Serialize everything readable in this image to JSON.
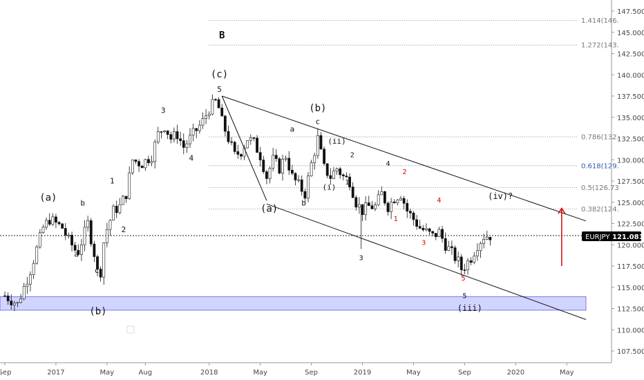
{
  "chart_data": {
    "type": "candlestick",
    "symbol": "EURJPY",
    "last_price": "121.081",
    "colors": {
      "up": "#ffffff",
      "down": "#111111",
      "wick": "#111111",
      "support_zone": "#c9ccff",
      "arrow": "#d40000",
      "fib_blue": "#2a5db0",
      "red_label": "#d40000"
    },
    "ylim": [
      106.25,
      148.75
    ],
    "y_ticks": [
      "147.500",
      "145.000",
      "142.500",
      "140.000",
      "137.500",
      "135.000",
      "132.500",
      "130.000",
      "127.500",
      "125.000",
      "122.500",
      "120.000",
      "117.500",
      "115.000",
      "112.500",
      "110.000",
      "107.500"
    ],
    "x_ticks": [
      {
        "label": "Sep",
        "t": 0
      },
      {
        "label": "2017",
        "t": 4
      },
      {
        "label": "May",
        "t": 8
      },
      {
        "label": "Aug",
        "t": 11
      },
      {
        "label": "2018",
        "t": 16
      },
      {
        "label": "May",
        "t": 20
      },
      {
        "label": "Sep",
        "t": 24
      },
      {
        "label": "2019",
        "t": 28
      },
      {
        "label": "May",
        "t": 32
      },
      {
        "label": "Sep",
        "t": 36
      },
      {
        "label": "2020",
        "t": 40
      },
      {
        "label": "May",
        "t": 44
      }
    ],
    "price_path": [
      [
        0,
        114
      ],
      [
        1,
        113
      ],
      [
        2,
        117
      ],
      [
        3,
        122
      ],
      [
        3.5,
        123
      ],
      [
        4.5,
        122
      ],
      [
        5,
        120.5
      ],
      [
        5.7,
        119
      ],
      [
        6.5,
        122.5
      ],
      [
        7,
        119
      ],
      [
        7.4,
        115.5
      ],
      [
        7.8,
        121
      ],
      [
        8.5,
        124
      ],
      [
        9,
        124.5
      ],
      [
        9.5,
        126
      ],
      [
        10,
        130
      ],
      [
        10.7,
        129.5
      ],
      [
        11.5,
        130.5
      ],
      [
        12,
        133
      ],
      [
        12.5,
        134
      ],
      [
        13,
        132.5
      ],
      [
        13.5,
        133
      ],
      [
        14,
        131.5
      ],
      [
        14.5,
        132.5
      ],
      [
        15.5,
        134.5
      ],
      [
        16,
        136
      ],
      [
        16.6,
        137
      ],
      [
        17,
        134.5
      ],
      [
        17.5,
        132.5
      ],
      [
        18,
        130.5
      ],
      [
        18.5,
        131
      ],
      [
        19,
        132.5
      ],
      [
        19.5,
        132
      ],
      [
        20,
        130.5
      ],
      [
        20.5,
        128
      ],
      [
        21,
        130
      ],
      [
        21.5,
        129
      ],
      [
        22,
        130.5
      ],
      [
        22.5,
        128
      ],
      [
        23,
        127
      ],
      [
        23.5,
        126
      ],
      [
        24,
        129.5
      ],
      [
        24.5,
        132.5
      ],
      [
        25,
        129
      ],
      [
        25.5,
        128
      ],
      [
        26,
        129
      ],
      [
        26.5,
        128
      ],
      [
        27,
        127.5
      ],
      [
        27.5,
        125
      ],
      [
        28,
        124
      ],
      [
        28.5,
        124.5
      ],
      [
        29,
        124.5
      ],
      [
        29.5,
        126
      ],
      [
        30,
        124.5
      ],
      [
        30.5,
        125.5
      ],
      [
        31,
        126
      ],
      [
        31.5,
        124
      ],
      [
        32,
        123
      ],
      [
        32.5,
        122
      ],
      [
        33,
        121.5
      ],
      [
        33.5,
        121
      ],
      [
        34,
        121.5
      ],
      [
        34.5,
        120
      ],
      [
        35,
        119
      ],
      [
        35.5,
        118
      ],
      [
        35.8,
        117
      ],
      [
        36,
        117.5
      ],
      [
        36.5,
        118.5
      ],
      [
        37,
        120
      ],
      [
        37.5,
        121
      ],
      [
        38,
        121.081
      ]
    ],
    "trendlines": [
      {
        "name": "channel-upper",
        "from": [
          17,
          137.5
        ],
        "to": [
          45.5,
          122.8
        ]
      },
      {
        "name": "channel-lower",
        "from": [
          20.5,
          124.8
        ],
        "to": [
          45.5,
          111.2
        ]
      },
      {
        "name": "channel-left",
        "from": [
          17,
          137.5
        ],
        "to": [
          20.5,
          125.2
        ]
      }
    ],
    "support_zone": {
      "from": 112.3,
      "to": 113.9
    },
    "horizontal_line": {
      "price": 121.081,
      "style": "dotted"
    },
    "fib_levels": [
      {
        "label": "1.414(146.",
        "price": 146.4,
        "t_start": 16,
        "blue": false
      },
      {
        "label": "1.272(143.",
        "price": 143.5,
        "t_start": 16,
        "blue": false
      },
      {
        "label": "0.786(132.",
        "price": 132.7,
        "t_start": 16,
        "blue": false
      },
      {
        "label": "0.618(129.",
        "price": 129.3,
        "t_start": 16,
        "blue": true
      },
      {
        "label": "0.5(126.73",
        "price": 126.73,
        "t_start": 16,
        "blue": false
      },
      {
        "label": "0.382(124.",
        "price": 124.2,
        "t_start": 16,
        "blue": false
      }
    ],
    "arrow": {
      "t": 43.6,
      "from": 117.5,
      "to": 124.3
    },
    "wave_labels": [
      {
        "text": "B",
        "t": 17.0,
        "p": 144.3,
        "size": 14,
        "bold": true
      },
      {
        "text": "(c)",
        "t": 16.8,
        "p": 139.7,
        "size": 14,
        "bold": false
      },
      {
        "text": "5",
        "t": 16.8,
        "p": 138.0,
        "size": 11,
        "bold": false
      },
      {
        "text": "3",
        "t": 12.4,
        "p": 135.5,
        "size": 11,
        "bold": false
      },
      {
        "text": "4",
        "t": 14.6,
        "p": 129.9,
        "size": 11,
        "bold": false
      },
      {
        "text": "1",
        "t": 8.4,
        "p": 127.2,
        "size": 11,
        "bold": false
      },
      {
        "text": "2",
        "t": 9.3,
        "p": 121.5,
        "size": 11,
        "bold": false
      },
      {
        "text": "(a)",
        "t": 3.4,
        "p": 125.2,
        "size": 14,
        "bold": false
      },
      {
        "text": "b",
        "t": 6.1,
        "p": 124.6,
        "size": 11,
        "bold": false
      },
      {
        "text": "a",
        "t": 5.6,
        "p": 118.6,
        "size": 11,
        "bold": false
      },
      {
        "text": "c",
        "t": 7.2,
        "p": 116.7,
        "size": 11,
        "bold": false
      },
      {
        "text": "(b)",
        "t": 7.3,
        "p": 111.8,
        "size": 14,
        "bold": false
      },
      {
        "text": "(b)",
        "t": 24.5,
        "p": 135.7,
        "size": 14,
        "bold": false
      },
      {
        "text": "a",
        "t": 22.5,
        "p": 133.3,
        "size": 11,
        "bold": false
      },
      {
        "text": "c",
        "t": 24.5,
        "p": 134.2,
        "size": 11,
        "bold": false
      },
      {
        "text": "(ii)",
        "t": 26.0,
        "p": 131.9,
        "size": 11,
        "bold": false
      },
      {
        "text": "2",
        "t": 27.2,
        "p": 130.3,
        "size": 10,
        "bold": false
      },
      {
        "text": "1",
        "t": 26.8,
        "p": 127.1,
        "size": 10,
        "bold": false
      },
      {
        "text": "(i)",
        "t": 25.4,
        "p": 126.5,
        "size": 11,
        "bold": false
      },
      {
        "text": "b",
        "t": 23.4,
        "p": 124.6,
        "size": 11,
        "bold": false
      },
      {
        "text": "(a)",
        "t": 20.7,
        "p": 123.9,
        "size": 14,
        "bold": false
      },
      {
        "text": "4",
        "t": 30.0,
        "p": 129.3,
        "size": 10,
        "bold": false
      },
      {
        "text": "3",
        "t": 27.9,
        "p": 118.2,
        "size": 10,
        "bold": false
      },
      {
        "text": "5",
        "t": 36.0,
        "p": 113.7,
        "size": 10,
        "bold": false
      },
      {
        "text": "(iii)",
        "t": 36.4,
        "p": 112.2,
        "size": 12,
        "bold": false
      },
      {
        "text": "(iv)?",
        "t": 38.8,
        "p": 125.4,
        "size": 12,
        "bold": false
      }
    ],
    "red_labels": [
      {
        "text": "2",
        "t": 31.3,
        "p": 128.3
      },
      {
        "text": "4",
        "t": 34.0,
        "p": 125.0
      },
      {
        "text": "1",
        "t": 30.6,
        "p": 122.8
      },
      {
        "text": "3",
        "t": 32.8,
        "p": 120.0
      },
      {
        "text": "5",
        "t": 35.9,
        "p": 115.8
      }
    ]
  }
}
